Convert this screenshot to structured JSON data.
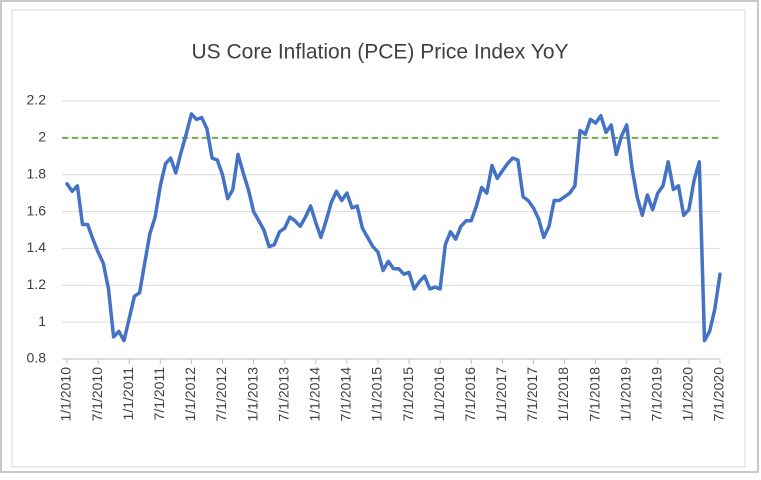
{
  "chart_data": {
    "type": "line",
    "title": "US Core Inflation (PCE) Price Index YoY",
    "categories": [
      "1/1/2010",
      null,
      null,
      null,
      null,
      null,
      "7/1/2010",
      null,
      null,
      null,
      null,
      null,
      "1/1/2011",
      null,
      null,
      null,
      null,
      null,
      "7/1/2011",
      null,
      null,
      null,
      null,
      null,
      "1/1/2012",
      null,
      null,
      null,
      null,
      null,
      "7/1/2012",
      null,
      null,
      null,
      null,
      null,
      "1/1/2013",
      null,
      null,
      null,
      null,
      null,
      "7/1/2013",
      null,
      null,
      null,
      null,
      null,
      "1/1/2014",
      null,
      null,
      null,
      null,
      null,
      "7/1/2014",
      null,
      null,
      null,
      null,
      null,
      "1/1/2015",
      null,
      null,
      null,
      null,
      null,
      "7/1/2015",
      null,
      null,
      null,
      null,
      null,
      "1/1/2016",
      null,
      null,
      null,
      null,
      null,
      "7/1/2016",
      null,
      null,
      null,
      null,
      null,
      "1/1/2017",
      null,
      null,
      null,
      null,
      null,
      "7/1/2017",
      null,
      null,
      null,
      null,
      null,
      "1/1/2018",
      null,
      null,
      null,
      null,
      null,
      "7/1/2018",
      null,
      null,
      null,
      null,
      null,
      "1/1/2019",
      null,
      null,
      null,
      null,
      null,
      "7/1/2019",
      null,
      null,
      null,
      null,
      null,
      "1/1/2020",
      null,
      null,
      null,
      null,
      null,
      "7/1/2020"
    ],
    "series": [
      {
        "color": "#4472c4",
        "values": [
          1.75,
          1.71,
          1.74,
          1.53,
          1.53,
          1.45,
          1.38,
          1.32,
          1.18,
          0.92,
          0.95,
          0.9,
          1.02,
          1.14,
          1.16,
          1.32,
          1.48,
          1.57,
          1.74,
          1.86,
          1.89,
          1.81,
          1.92,
          2.02,
          2.13,
          2.1,
          2.11,
          2.05,
          1.89,
          1.88,
          1.8,
          1.67,
          1.72,
          1.91,
          1.81,
          1.72,
          1.6,
          1.55,
          1.5,
          1.41,
          1.42,
          1.49,
          1.51,
          1.57,
          1.55,
          1.52,
          1.57,
          1.63,
          1.54,
          1.46,
          1.55,
          1.65,
          1.71,
          1.66,
          1.7,
          1.62,
          1.63,
          1.51,
          1.46,
          1.41,
          1.38,
          1.28,
          1.33,
          1.29,
          1.29,
          1.26,
          1.27,
          1.18,
          1.22,
          1.25,
          1.18,
          1.19,
          1.18,
          1.42,
          1.49,
          1.45,
          1.52,
          1.55,
          1.55,
          1.63,
          1.73,
          1.7,
          1.85,
          1.78,
          1.82,
          1.86,
          1.89,
          1.88,
          1.68,
          1.66,
          1.62,
          1.56,
          1.46,
          1.52,
          1.66,
          1.66,
          1.68,
          1.7,
          1.74,
          2.04,
          2.02,
          2.1,
          2.08,
          2.12,
          2.03,
          2.07,
          1.91,
          2.01,
          2.07,
          1.84,
          1.68,
          1.58,
          1.69,
          1.61,
          1.7,
          1.74,
          1.87,
          1.72,
          1.74,
          1.58,
          1.61,
          1.77,
          1.87,
          0.9,
          0.95,
          1.07,
          1.26
        ]
      }
    ],
    "reference_line": {
      "value": 2,
      "color": "#70ad47"
    },
    "ylim": [
      0.8,
      2.2
    ],
    "yticks": [
      0.8,
      1,
      1.2,
      1.4,
      1.6,
      1.8,
      2,
      2.2
    ],
    "grid": true
  }
}
